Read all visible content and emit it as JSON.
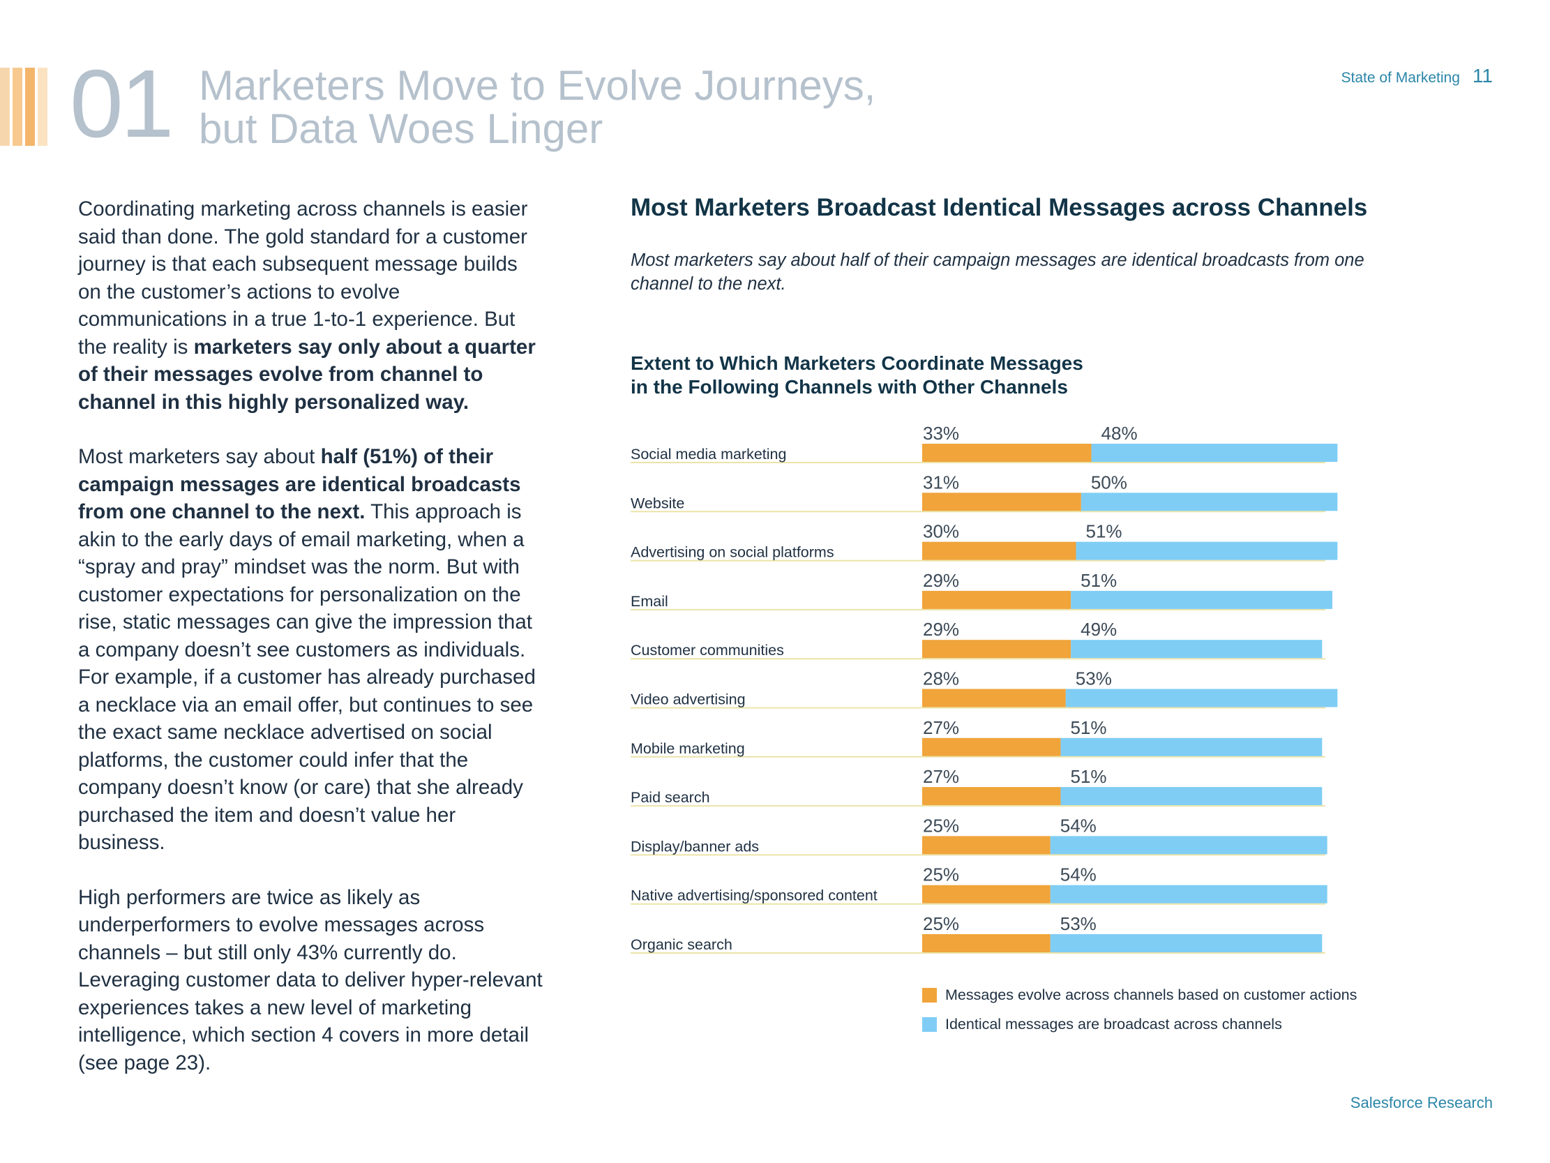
{
  "header": {
    "section_number": "01",
    "title_line1": "Marketers Move to Evolve Journeys,",
    "title_line2": "but Data Woes Linger",
    "running_head": "State of Marketing",
    "page_number": "11",
    "stripe_colors": [
      "#f6d7ad",
      "#f8c98e",
      "#f3b56a",
      "#fbe3c2"
    ]
  },
  "body": {
    "p1_a": "Coordinating marketing across channels is easier said than done. The gold standard for a customer journey is that each subsequent message builds on the customer’s actions to evolve communications in a true 1-to-1 experience. But the reality is ",
    "p1_b": "marketers say only about a quarter of their messages evolve from channel to channel in this highly personalized way.",
    "p2_a": "Most marketers say about ",
    "p2_b": "half (51%) of their campaign messages are identical broadcasts from one channel to the next.",
    "p2_c": " This approach is akin to the early days of email marketing, when a “spray and pray” mindset was the norm. But with customer expectations for personalization on the rise, static messages can give the impression that a company doesn’t see customers as individuals. For example, if a customer has already purchased a necklace via an email offer, but continues to see the exact same necklace advertised on social platforms, the customer could infer that the company doesn’t know (or care) that she already purchased the item and doesn’t value her business.",
    "p3": "High performers are twice as likely as underperformers to evolve messages across channels – but still only 43% currently do. Leveraging customer data to deliver hyper-relevant experiences takes a new level of marketing intelligence, which section 4 covers in more detail (see page 23)."
  },
  "chart_intro": {
    "title": "Most Marketers Broadcast Identical Messages across Channels",
    "subtitle": "Most marketers say about half of their campaign messages are identical broadcasts from one channel to the next."
  },
  "chart_data": {
    "type": "bar",
    "orientation": "horizontal",
    "stacked": true,
    "title_line1": "Extent to Which Marketers Coordinate Messages",
    "title_line2": "in the Following Channels with Other Channels",
    "categories": [
      "Social media marketing",
      "Website",
      "Advertising on social platforms",
      "Email",
      "Customer communities",
      "Video advertising",
      "Mobile marketing",
      "Paid search",
      "Display/banner ads",
      "Native advertising/sponsored content",
      "Organic search"
    ],
    "series": [
      {
        "name": "Messages evolve across channels based on customer actions",
        "color": "#f0a43a",
        "values": [
          33,
          31,
          30,
          29,
          29,
          28,
          27,
          27,
          25,
          25,
          25
        ]
      },
      {
        "name": "Identical messages are broadcast across channels",
        "color": "#7fcdf5",
        "values": [
          48,
          50,
          51,
          51,
          49,
          53,
          51,
          51,
          54,
          54,
          53
        ]
      }
    ],
    "value_suffix": "%",
    "xlim": [
      0,
      100
    ],
    "legend_position": "bottom",
    "separator_color": "#ece3a8"
  },
  "footer": {
    "text": "Salesforce Research"
  }
}
